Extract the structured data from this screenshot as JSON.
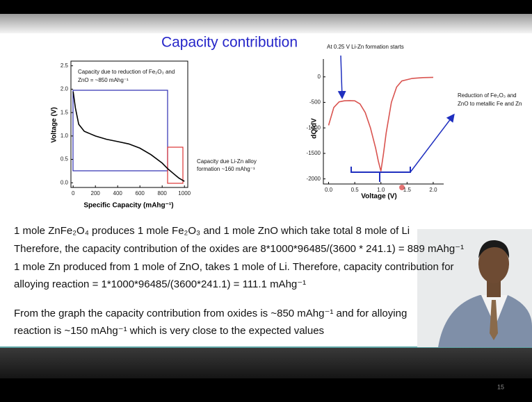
{
  "slide": {
    "title": "Capacity contribution",
    "body": [
      "1 mole ZnFe₂O₄ produces 1 mole Fe₂O₃ and 1 mole ZnO which take total 8 mole of Li",
      "Therefore, the capacity contribution of the oxides are 8*1000*96485/(3600 * 241.1) = 889 mAhg⁻¹",
      "1 mole Zn produced from 1 mole of ZnO, takes 1 mole of Li. Therefore, capacity contribution for",
      "alloying reaction = 1*1000*96485/(3600*241.1) = 111.1 mAhg⁻¹",
      "From the graph the capacity contribution from oxides is ~850 mAhg⁻¹ and for alloying",
      "reaction is ~150 mAhg⁻¹ which is very close to the expected values"
    ],
    "page_number": "15"
  },
  "chart_data": [
    {
      "type": "line",
      "x_label": "Specific Capacity (mAhg⁻¹)",
      "y_label": "Voltage (V)",
      "x": [
        0,
        20,
        50,
        100,
        200,
        300,
        400,
        500,
        600,
        700,
        800,
        850,
        900,
        950,
        1000
      ],
      "values": [
        1.95,
        1.6,
        1.25,
        1.1,
        1.0,
        0.93,
        0.88,
        0.83,
        0.74,
        0.6,
        0.42,
        0.3,
        0.2,
        0.1,
        0.03
      ],
      "color": "#000000",
      "xlim": [
        -20,
        1030
      ],
      "ylim": [
        -0.1,
        2.6
      ],
      "xticks": [
        0,
        200,
        400,
        600,
        800,
        1000
      ],
      "yticks": [
        {
          "value": 0,
          "label": "0.0"
        },
        0.5,
        {
          "value": 1,
          "label": "1.0"
        },
        1.5,
        {
          "value": 2,
          "label": "2.0"
        },
        2.5
      ],
      "annotations": [
        "Capacity due to reduction of Fe₂O₃ and",
        "ZnO = ~850 mAhg⁻¹",
        "Capacity due Li-Zn alloy",
        "formation ~160 mAhg⁻¹"
      ]
    },
    {
      "type": "line",
      "x_label": "Voltage (V)",
      "y_label": "dQ/dV",
      "x": [
        0,
        0.1,
        0.2,
        0.3,
        0.4,
        0.5,
        0.6,
        0.7,
        0.8,
        0.9,
        0.95,
        1.0,
        1.05,
        1.1,
        1.2,
        1.3,
        1.4,
        1.6,
        1.8,
        2.0
      ],
      "values": [
        -950,
        -600,
        -490,
        -470,
        -465,
        -470,
        -530,
        -700,
        -1000,
        -1400,
        -1650,
        -1850,
        -1500,
        -1100,
        -500,
        -200,
        -80,
        -30,
        -15,
        -10
      ],
      "color": "#d9534f",
      "xlim": [
        -0.1,
        2.2
      ],
      "ylim": [
        -2100,
        350
      ],
      "xticks": [
        {
          "value": 0,
          "label": "0.0"
        },
        0.5,
        {
          "value": 1,
          "label": "1.0"
        },
        1.5,
        {
          "value": 2,
          "label": "2.0"
        }
      ],
      "yticks": [
        0,
        -500,
        -1000,
        -1500,
        -2000
      ],
      "annotations": [
        "At 0.25 V Li-Zn formation starts",
        "Reduction of Fe₂O₃ and",
        "ZnO to metallic Fe and Zn"
      ]
    }
  ]
}
